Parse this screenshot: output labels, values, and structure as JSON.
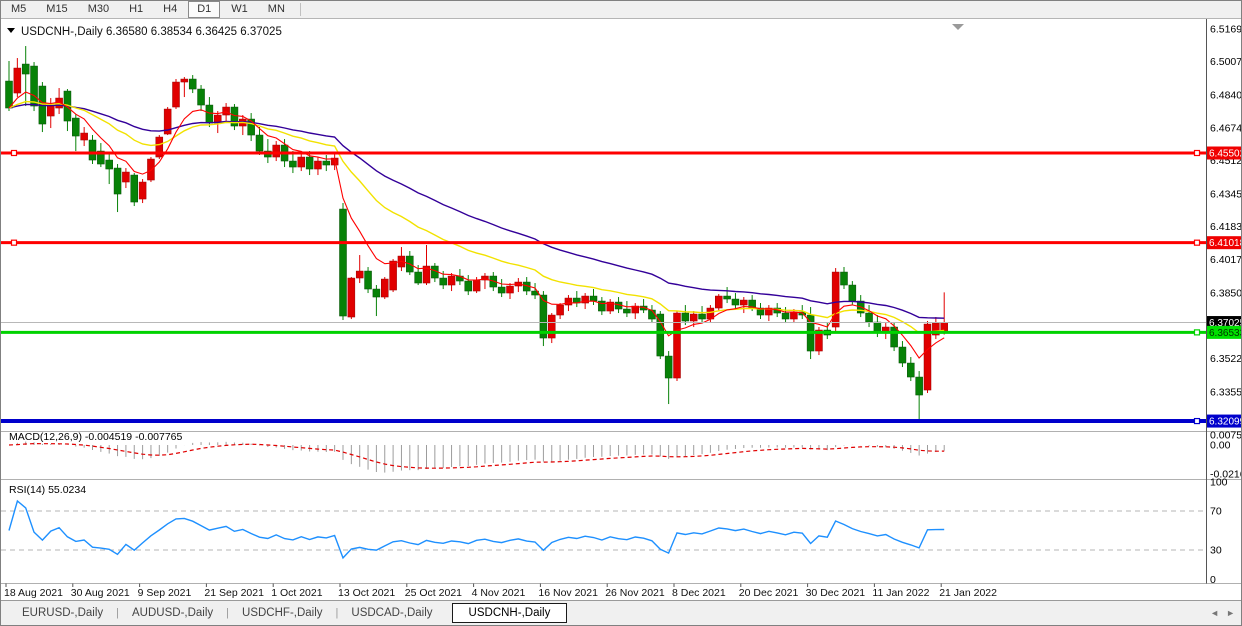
{
  "toolbar": {
    "timeframes": [
      "M5",
      "M15",
      "M30",
      "H1",
      "H4",
      "D1",
      "W1",
      "MN"
    ],
    "active": "D1"
  },
  "chart": {
    "symbol": "USDCNH-,Daily",
    "title_line": "USDCNH-,Daily  6.36580 6.38534 6.36425 6.37025"
  },
  "tabs": {
    "items": [
      "EURUSD-,Daily",
      "AUDUSD-,Daily",
      "USDCHF-,Daily",
      "USDCAD-,Daily",
      "USDCNH-,Daily"
    ],
    "active": "USDCNH-,Daily",
    "scroll_left_icon": "◄",
    "scroll_right_icon": "►"
  },
  "colors": {
    "bull": "#e00000",
    "bull_edge": "#9a0000",
    "bear": "#078207",
    "bear_edge": "#044d04",
    "ma_fast": "#ff0000",
    "ma_mid": "#f2e200",
    "ma_slow": "#330099",
    "macd_bar": "#9c9c9c",
    "macd_signal": "#e00000",
    "rsi_line": "#1e90ff",
    "level_red": "#ff0000",
    "level_green": "#00d200",
    "level_blue": "#0000cc",
    "bid_gray": "#b8b8b8"
  },
  "chart_data": {
    "type": "candlestick",
    "symbol": "USDCNH-",
    "timeframe": "Daily",
    "ohlc_display": {
      "open": "6.36580",
      "high": "6.38534",
      "low": "6.36425",
      "close": "6.37025"
    },
    "candles": [
      [
        6.491,
        6.501,
        6.476,
        6.4775
      ],
      [
        6.485,
        6.5025,
        6.483,
        6.4975
      ],
      [
        6.4995,
        6.5085,
        6.4785,
        6.4945
      ],
      [
        6.4985,
        6.5005,
        6.476,
        6.4785
      ],
      [
        6.4885,
        6.4905,
        6.4655,
        6.4695
      ],
      [
        6.4735,
        6.4825,
        6.4675,
        6.4785
      ],
      [
        6.4775,
        6.4875,
        6.4745,
        6.4825
      ],
      [
        6.486,
        6.487,
        6.466,
        6.471
      ],
      [
        6.4725,
        6.4745,
        6.456,
        6.4635
      ],
      [
        6.4615,
        6.468,
        6.4585,
        6.465
      ],
      [
        6.4615,
        6.464,
        6.4495,
        6.4515
      ],
      [
        6.456,
        6.46,
        6.448,
        6.4495
      ],
      [
        6.4515,
        6.4545,
        6.4395,
        6.447
      ],
      [
        6.4475,
        6.4495,
        6.4255,
        6.4345
      ],
      [
        6.4405,
        6.4475,
        6.4375,
        6.4455
      ],
      [
        6.444,
        6.445,
        6.4285,
        6.4305
      ],
      [
        6.432,
        6.442,
        6.43,
        6.4405
      ],
      [
        6.4415,
        6.453,
        6.4405,
        6.452
      ],
      [
        6.453,
        6.464,
        6.452,
        6.463
      ],
      [
        6.4645,
        6.478,
        6.464,
        6.477
      ],
      [
        6.478,
        6.492,
        6.477,
        6.4905
      ],
      [
        6.4905,
        6.493,
        6.483,
        6.492
      ],
      [
        6.492,
        6.494,
        6.485,
        6.487
      ],
      [
        6.487,
        6.489,
        6.476,
        6.479
      ],
      [
        6.479,
        6.483,
        6.468,
        6.47
      ],
      [
        6.47,
        6.476,
        6.465,
        6.474
      ],
      [
        6.474,
        6.48,
        6.47,
        6.478
      ],
      [
        6.478,
        6.4795,
        6.4665,
        6.4685
      ],
      [
        6.4685,
        6.474,
        6.464,
        6.472
      ],
      [
        6.472,
        6.475,
        6.461,
        6.464
      ],
      [
        6.464,
        6.468,
        6.454,
        6.456
      ],
      [
        6.456,
        6.462,
        6.45,
        6.453
      ],
      [
        6.453,
        6.461,
        6.451,
        6.459
      ],
      [
        6.459,
        6.462,
        6.448,
        6.451
      ],
      [
        6.451,
        6.456,
        6.445,
        6.448
      ],
      [
        6.448,
        6.455,
        6.446,
        6.453
      ],
      [
        6.453,
        6.456,
        6.444,
        6.447
      ],
      [
        6.447,
        6.453,
        6.444,
        6.451
      ],
      [
        6.451,
        6.454,
        6.446,
        6.449
      ],
      [
        6.449,
        6.4545,
        6.4465,
        6.4525
      ],
      [
        6.427,
        6.43,
        6.3715,
        6.3735
      ],
      [
        6.373,
        6.393,
        6.372,
        6.3925
      ],
      [
        6.3925,
        6.404,
        6.39,
        6.396
      ],
      [
        6.396,
        6.398,
        6.385,
        6.387
      ],
      [
        6.387,
        6.389,
        6.3735,
        6.383
      ],
      [
        6.383,
        6.393,
        6.382,
        6.392
      ],
      [
        6.3865,
        6.402,
        6.3855,
        6.401
      ],
      [
        6.398,
        6.408,
        6.396,
        6.4035
      ],
      [
        6.4035,
        6.406,
        6.394,
        6.3955
      ],
      [
        6.3955,
        6.399,
        6.389,
        6.39
      ],
      [
        6.39,
        6.409,
        6.389,
        6.3985
      ],
      [
        6.3985,
        6.4,
        6.3905,
        6.3925
      ],
      [
        6.3925,
        6.396,
        6.387,
        6.389
      ],
      [
        6.389,
        6.395,
        6.386,
        6.3935
      ],
      [
        6.3935,
        6.397,
        6.389,
        6.391
      ],
      [
        6.391,
        6.394,
        6.384,
        6.386
      ],
      [
        6.386,
        6.393,
        6.385,
        6.3915
      ],
      [
        6.3915,
        6.395,
        6.387,
        6.3935
      ],
      [
        6.3935,
        6.3955,
        6.386,
        6.388
      ],
      [
        6.388,
        6.392,
        6.383,
        6.385
      ],
      [
        6.385,
        6.39,
        6.382,
        6.3885
      ],
      [
        6.3885,
        6.3925,
        6.3855,
        6.3905
      ],
      [
        6.3905,
        6.393,
        6.384,
        6.386
      ],
      [
        6.386,
        6.39,
        6.382,
        6.384
      ],
      [
        6.384,
        6.386,
        6.3585,
        6.3625
      ],
      [
        6.3625,
        6.375,
        6.36,
        6.374
      ],
      [
        6.374,
        6.38,
        6.372,
        6.379
      ],
      [
        6.379,
        6.384,
        6.376,
        6.3825
      ],
      [
        6.3825,
        6.386,
        6.378,
        6.38
      ],
      [
        6.38,
        6.385,
        6.377,
        6.3835
      ],
      [
        6.3835,
        6.387,
        6.379,
        6.381
      ],
      [
        6.381,
        6.383,
        6.374,
        6.376
      ],
      [
        6.376,
        6.382,
        6.3745,
        6.3805
      ],
      [
        6.3805,
        6.383,
        6.375,
        6.377
      ],
      [
        6.377,
        6.381,
        6.373,
        6.375
      ],
      [
        6.375,
        6.38,
        6.372,
        6.3785
      ],
      [
        6.3785,
        6.382,
        6.375,
        6.3765
      ],
      [
        6.3765,
        6.379,
        6.37,
        6.372
      ],
      [
        6.3745,
        6.376,
        6.352,
        6.3535
      ],
      [
        6.3535,
        6.356,
        6.3295,
        6.3425
      ],
      [
        6.3425,
        6.376,
        6.341,
        6.375
      ],
      [
        6.375,
        6.379,
        6.369,
        6.371
      ],
      [
        6.371,
        6.376,
        6.368,
        6.3745
      ],
      [
        6.3745,
        6.3785,
        6.37,
        6.372
      ],
      [
        6.372,
        6.379,
        6.3705,
        6.3775
      ],
      [
        6.3775,
        6.3845,
        6.376,
        6.3835
      ],
      [
        6.3835,
        6.388,
        6.38,
        6.382
      ],
      [
        6.382,
        6.385,
        6.377,
        6.379
      ],
      [
        6.379,
        6.383,
        6.375,
        6.3815
      ],
      [
        6.3815,
        6.384,
        6.376,
        6.3775
      ],
      [
        6.3775,
        6.38,
        6.372,
        6.374
      ],
      [
        6.374,
        6.379,
        6.371,
        6.3775
      ],
      [
        6.3775,
        6.38,
        6.373,
        6.375
      ],
      [
        6.375,
        6.378,
        6.37,
        6.372
      ],
      [
        6.372,
        6.377,
        6.37,
        6.3755
      ],
      [
        6.3755,
        6.379,
        6.372,
        6.374
      ],
      [
        6.374,
        6.378,
        6.352,
        6.356
      ],
      [
        6.356,
        6.368,
        6.354,
        6.3665
      ],
      [
        6.3665,
        6.37,
        6.362,
        6.364
      ],
      [
        6.368,
        6.3975,
        6.366,
        6.3955
      ],
      [
        6.3955,
        6.398,
        6.387,
        6.389
      ],
      [
        6.389,
        6.391,
        6.379,
        6.381
      ],
      [
        6.381,
        6.384,
        6.373,
        6.375
      ],
      [
        6.375,
        6.379,
        6.368,
        6.3705
      ],
      [
        6.3705,
        6.374,
        6.363,
        6.3655
      ],
      [
        6.3655,
        6.37,
        6.362,
        6.368
      ],
      [
        6.368,
        6.37,
        6.356,
        6.358
      ],
      [
        6.358,
        6.361,
        6.348,
        6.35
      ],
      [
        6.35,
        6.353,
        6.341,
        6.343
      ],
      [
        6.343,
        6.346,
        6.3205,
        6.334
      ],
      [
        6.3365,
        6.371,
        6.335,
        6.3695
      ],
      [
        6.364,
        6.373,
        6.362,
        6.37
      ],
      [
        6.3658,
        6.38534,
        6.36425,
        6.37025
      ]
    ],
    "price_ticks": [
      {
        "t": "6.51690",
        "v": 6.5169
      },
      {
        "t": "6.50070",
        "v": 6.5007
      },
      {
        "t": "6.48405",
        "v": 6.48405
      },
      {
        "t": "6.46740",
        "v": 6.4674
      },
      {
        "t": "6.45120",
        "v": 6.4512
      },
      {
        "t": "6.43455",
        "v": 6.43455
      },
      {
        "t": "6.41835",
        "v": 6.41835
      },
      {
        "t": "6.40170",
        "v": 6.4017
      },
      {
        "t": "6.38505",
        "v": 6.38505
      },
      {
        "t": "6.35220",
        "v": 6.3522
      },
      {
        "t": "6.33555",
        "v": 6.33555
      }
    ],
    "levels": [
      {
        "price": 6.45502,
        "label": "6.45502",
        "color": "#ff0000",
        "width": 3,
        "box_bg": "#f00000",
        "box_fg": "#ffffff",
        "markers": "both"
      },
      {
        "price": 6.41018,
        "label": "6.41018",
        "color": "#ff0000",
        "width": 3,
        "box_bg": "#f00000",
        "box_fg": "#ffffff",
        "markers": "both"
      },
      {
        "price": 6.37025,
        "label": "6.37025",
        "color": "#b8b8b8",
        "width": 1,
        "box_bg": "#000000",
        "box_fg": "#ffffff",
        "markers": "none"
      },
      {
        "price": 6.36533,
        "label": "6.36533",
        "color": "#00d200",
        "width": 3,
        "box_bg": "#00e000",
        "box_fg": "#003300",
        "markers": "right"
      },
      {
        "price": 6.32099,
        "label": "6.32099",
        "color": "#0000cc",
        "width": 4,
        "box_bg": "#0000cc",
        "box_fg": "#ffffff",
        "markers": "right"
      }
    ],
    "moving_averages": [
      {
        "type": "EMA",
        "period": 7,
        "color": "#ff0000",
        "w": 1.1
      },
      {
        "type": "EMA",
        "period": 21,
        "color": "#f2e200",
        "w": 1.4
      },
      {
        "type": "EMA",
        "period": 40,
        "color": "#330099",
        "w": 1.4
      }
    ],
    "indicators": {
      "macd": {
        "header": "MACD(12,26,9) -0.004519 -0.007765",
        "fast": 12,
        "slow": 26,
        "signal": 9,
        "main_value": "-0.004519",
        "signal_value": "-0.007765",
        "axis_labels": [
          {
            "t": "0.007596",
            "v": 0.007596
          },
          {
            "t": "0.00",
            "v": 0.0
          },
          {
            "t": "-0.02164",
            "v": -0.02164
          }
        ]
      },
      "rsi": {
        "header": "RSI(14) 55.0234",
        "period": 14,
        "value": "55.0234",
        "axis_labels": [
          {
            "t": "100",
            "v": 100
          },
          {
            "t": "70",
            "v": 70
          },
          {
            "t": "30",
            "v": 30
          },
          {
            "t": "0",
            "v": 0
          }
        ],
        "bands": [
          70,
          30
        ]
      }
    },
    "x_labels": [
      {
        "text": "18 Aug 2021",
        "i": 0
      },
      {
        "text": "30 Aug 2021",
        "i": 8
      },
      {
        "text": "9 Sep 2021",
        "i": 16
      },
      {
        "text": "21 Sep 2021",
        "i": 24
      },
      {
        "text": "1 Oct 2021",
        "i": 32
      },
      {
        "text": "13 Oct 2021",
        "i": 40
      },
      {
        "text": "25 Oct 2021",
        "i": 48
      },
      {
        "text": "4 Nov 2021",
        "i": 56
      },
      {
        "text": "16 Nov 2021",
        "i": 64
      },
      {
        "text": "26 Nov 2021",
        "i": 72
      },
      {
        "text": "8 Dec 2021",
        "i": 80
      },
      {
        "text": "20 Dec 2021",
        "i": 88
      },
      {
        "text": "30 Dec 2021",
        "i": 96
      },
      {
        "text": "11 Jan 2022",
        "i": 104
      },
      {
        "text": "21 Jan 2022",
        "i": 112
      }
    ]
  }
}
